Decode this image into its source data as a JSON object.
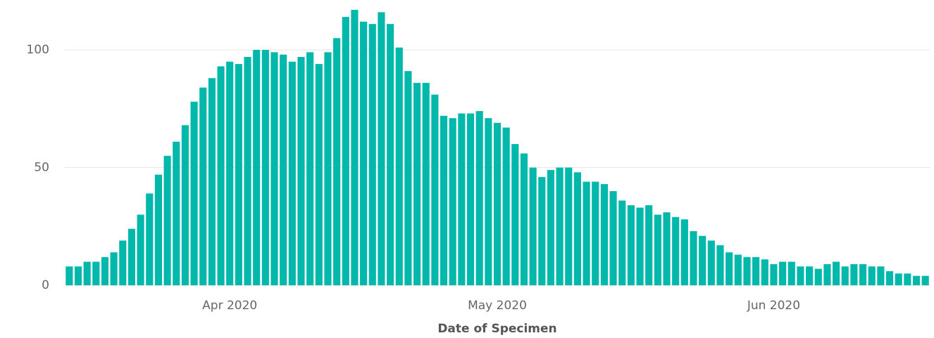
{
  "chart_data": {
    "type": "bar",
    "x_label": "Date of Specimen",
    "categories": [
      null,
      null,
      null,
      null,
      null,
      null,
      null,
      null,
      null,
      null,
      null,
      null,
      null,
      null,
      null,
      null,
      null,
      null,
      "Apr 2020",
      null,
      null,
      null,
      null,
      null,
      null,
      null,
      null,
      null,
      null,
      null,
      null,
      null,
      null,
      null,
      null,
      null,
      null,
      null,
      null,
      null,
      null,
      null,
      null,
      null,
      null,
      null,
      null,
      null,
      "May 2020",
      null,
      null,
      null,
      null,
      null,
      null,
      null,
      null,
      null,
      null,
      null,
      null,
      null,
      null,
      null,
      null,
      null,
      null,
      null,
      null,
      null,
      null,
      null,
      null,
      null,
      null,
      null,
      null,
      null,
      null,
      "Jun 2020",
      null,
      null,
      null,
      null,
      null,
      null,
      null,
      null,
      null,
      null,
      null,
      null,
      null,
      null,
      null,
      null,
      null
    ],
    "values": [
      8,
      8,
      10,
      10,
      12,
      14,
      19,
      24,
      30,
      39,
      47,
      55,
      61,
      68,
      78,
      84,
      88,
      93,
      95,
      94,
      97,
      100,
      100,
      99,
      98,
      95,
      97,
      99,
      94,
      99,
      105,
      114,
      117,
      112,
      111,
      116,
      111,
      101,
      91,
      86,
      86,
      81,
      72,
      71,
      73,
      73,
      74,
      71,
      69,
      67,
      60,
      56,
      50,
      46,
      49,
      50,
      50,
      48,
      44,
      44,
      43,
      40,
      36,
      34,
      33,
      34,
      30,
      31,
      29,
      28,
      23,
      21,
      19,
      17,
      14,
      13,
      12,
      12,
      11,
      9,
      10,
      10,
      8,
      8,
      7,
      9,
      10,
      8,
      9,
      9,
      8,
      8,
      6,
      5,
      5,
      4,
      4
    ],
    "color": "#01B8AA",
    "ylim": [
      0,
      118
    ],
    "yticks": [
      0,
      50,
      100
    ],
    "grid": true
  }
}
